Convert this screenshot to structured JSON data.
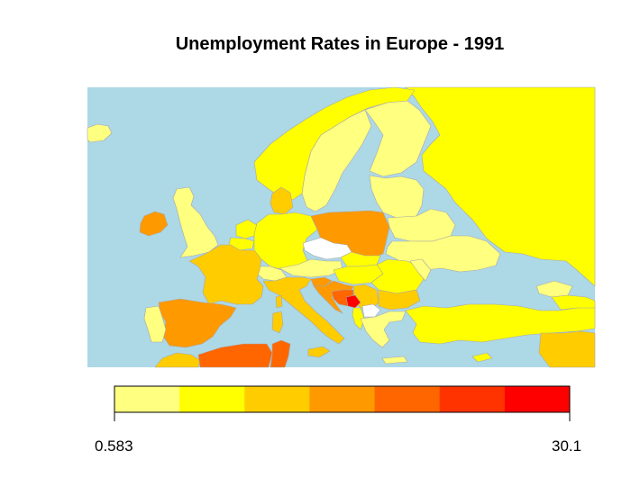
{
  "title": "Unemployment Rates in Europe - 1991",
  "colors": {
    "sea": "#add8e6",
    "border": "#a8a8a8",
    "no_data": "#ffffff"
  },
  "legend": {
    "min_label": "0.583",
    "max_label": "30.1",
    "bins": [
      "#ffff80",
      "#ffff00",
      "#ffcc00",
      "#ff9900",
      "#ff6600",
      "#ff3300",
      "#ff0000"
    ]
  },
  "countries": [
    {
      "id": "russia",
      "bin": 1
    },
    {
      "id": "norway",
      "bin": 1
    },
    {
      "id": "sweden",
      "bin": 0
    },
    {
      "id": "finland",
      "bin": 0
    },
    {
      "id": "iceland",
      "bin": 0
    },
    {
      "id": "uk",
      "bin": 0
    },
    {
      "id": "ireland",
      "bin": 3
    },
    {
      "id": "denmark",
      "bin": 2
    },
    {
      "id": "baltics",
      "bin": 0
    },
    {
      "id": "belarus",
      "bin": 0
    },
    {
      "id": "ukraine",
      "bin": 0
    },
    {
      "id": "netherlands",
      "bin": 1
    },
    {
      "id": "belgium",
      "bin": 1
    },
    {
      "id": "germany",
      "bin": 1
    },
    {
      "id": "poland",
      "bin": 3
    },
    {
      "id": "czechia",
      "bin": null
    },
    {
      "id": "slovakia",
      "bin": 1
    },
    {
      "id": "austria",
      "bin": 0
    },
    {
      "id": "switzerland",
      "bin": 0
    },
    {
      "id": "hungary",
      "bin": 1
    },
    {
      "id": "romania",
      "bin": 1
    },
    {
      "id": "moldova",
      "bin": 0
    },
    {
      "id": "france",
      "bin": 2
    },
    {
      "id": "italy",
      "bin": 2
    },
    {
      "id": "sicily",
      "bin": 2
    },
    {
      "id": "sardinia",
      "bin": 2
    },
    {
      "id": "corsica",
      "bin": 2
    },
    {
      "id": "slovenia",
      "bin": 3
    },
    {
      "id": "croatia",
      "bin": 3
    },
    {
      "id": "bosnia",
      "bin": 4
    },
    {
      "id": "serbia",
      "bin": 2
    },
    {
      "id": "montenegro",
      "bin": 6
    },
    {
      "id": "albania",
      "bin": 1
    },
    {
      "id": "macedonia",
      "bin": null
    },
    {
      "id": "bulgaria",
      "bin": 2
    },
    {
      "id": "greece",
      "bin": 0
    },
    {
      "id": "turkey",
      "bin": 1
    },
    {
      "id": "spain",
      "bin": 3
    },
    {
      "id": "portugal",
      "bin": 0
    },
    {
      "id": "morocco",
      "bin": 2
    },
    {
      "id": "algeria",
      "bin": 4
    },
    {
      "id": "tunisia",
      "bin": 4
    },
    {
      "id": "syria",
      "bin": 2
    },
    {
      "id": "georgia",
      "bin": 0
    },
    {
      "id": "caucasus",
      "bin": 1
    },
    {
      "id": "cyprus",
      "bin": 1
    },
    {
      "id": "crete",
      "bin": 0
    }
  ]
}
